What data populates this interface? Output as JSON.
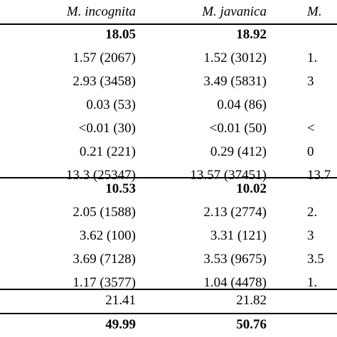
{
  "header": [
    "M. incognita",
    "M. javanica",
    "M."
  ],
  "section1": {
    "total": [
      "18.05",
      "18.92",
      ""
    ],
    "rows": [
      [
        "1.57 (2067)",
        "1.52 (3012)",
        "1."
      ],
      [
        "2.93 (3458)",
        "3.49 (5831)",
        "3"
      ],
      [
        "0.03 (53)",
        "0.04 (86)",
        ""
      ],
      [
        "<0.01 (30)",
        "<0.01 (50)",
        "<"
      ],
      [
        "0.21 (221)",
        "0.29 (412)",
        "0"
      ],
      [
        "13.3 (25347)",
        "13.57 (37451)",
        "13.7"
      ]
    ]
  },
  "section2": {
    "total": [
      "10.53",
      "10.02",
      ""
    ],
    "rows": [
      [
        "2.05 (1588)",
        "2.13 (2774)",
        "2."
      ],
      [
        "3.62 (100)",
        "3.31 (121)",
        "3"
      ],
      [
        "3.69 (7128)",
        "3.53 (9675)",
        "3.5"
      ],
      [
        "1.17 (3577)",
        "1.04 (4478)",
        "1."
      ]
    ]
  },
  "section3": [
    "21.41",
    "21.82",
    ""
  ],
  "grand_total": [
    "49.99",
    "50.76",
    ""
  ]
}
